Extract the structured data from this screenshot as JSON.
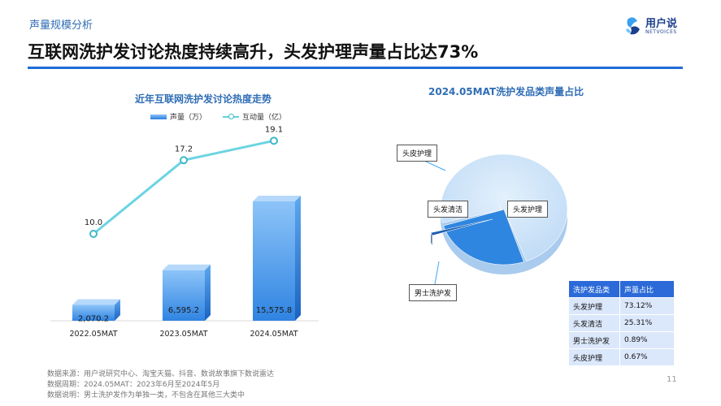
{
  "header": {
    "section": "声量规模分析",
    "headline": "互联网洗护发讨论热度持续高升，头发护理声量占比达73%",
    "logo_name": "用户说",
    "logo_sub": "NETVOICES"
  },
  "left_chart": {
    "title": "近年互联网洗护发讨论热度走势",
    "legend": [
      "声量（万）",
      "互动量（亿）"
    ]
  },
  "right_chart": {
    "title": "2024.05MAT洗护发品类声量占比",
    "table_header": [
      "洗护发品类",
      "声量占比"
    ],
    "rows": [
      {
        "cat": "头发护理",
        "share": "73.12%"
      },
      {
        "cat": "头发清洁",
        "share": "25.31%"
      },
      {
        "cat": "男士洗护发",
        "share": "0.89%"
      },
      {
        "cat": "头皮护理",
        "share": "0.67%"
      }
    ]
  },
  "chart_data": [
    {
      "type": "bar",
      "title": "近年互联网洗护发讨论热度走势",
      "categories": [
        "2022.05MAT",
        "2023.05MAT",
        "2024.05MAT"
      ],
      "series": [
        {
          "name": "声量（万）",
          "type": "bar",
          "values": [
            2070.2,
            6595.2,
            15575.8
          ],
          "labels": [
            "2,070.2",
            "6,595.2",
            "15,575.8"
          ]
        },
        {
          "name": "互动量（亿）",
          "type": "line",
          "values": [
            10.0,
            17.2,
            19.1
          ],
          "labels": [
            "10.0",
            "17.2",
            "19.1"
          ]
        }
      ],
      "colors": {
        "bar": "#2a7ee0",
        "line": "#5fd2e0"
      }
    },
    {
      "type": "pie",
      "title": "2024.05MAT洗护发品类声量占比",
      "categories": [
        "头发护理",
        "头发清洁",
        "男士洗护发",
        "头皮护理"
      ],
      "values": [
        73.12,
        25.31,
        0.89,
        0.67
      ],
      "colors": [
        "#cfe3f8",
        "#2f86e0",
        "#1d5fb0",
        "#4a90d9"
      ]
    }
  ],
  "footer": {
    "notes": [
      "数据来源：用户说研究中心、淘宝天猫、抖音、数说故事旗下数说雷达",
      "数据周期：2024.05MAT：2023年6月至2024年5月",
      "数据说明：男士洗护发作为单独一类，不包含在其他三大类中"
    ],
    "page": "11"
  }
}
